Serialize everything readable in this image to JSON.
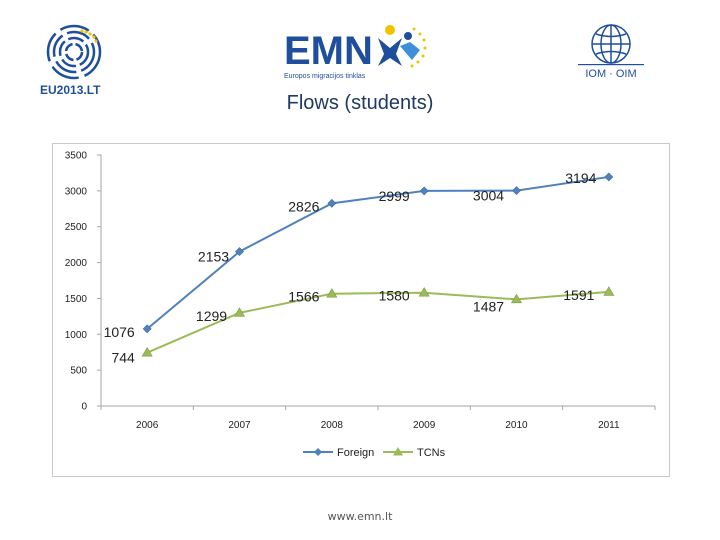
{
  "slide": {
    "title": "Flows (students)",
    "footer": "www.emn.lt"
  },
  "logos": {
    "eu_presidency_text": "EU2013.LT",
    "emn_text": "EMN",
    "emn_subtitle": "Europos migracijos tinklas",
    "iom_text": "IOM · OIM"
  },
  "colors": {
    "foreign": "#4f81bd",
    "tcns": "#9bbb59",
    "title": "#1f3864",
    "emn_blue": "#1f4e9c",
    "iom_blue": "#1f4e9c"
  },
  "chart_data": {
    "type": "line",
    "title": "",
    "xlabel": "",
    "ylabel": "",
    "categories": [
      "2006",
      "2007",
      "2008",
      "2009",
      "2010",
      "2011"
    ],
    "ylim": [
      0,
      3500
    ],
    "yticks": [
      "0",
      "500",
      "1000",
      "1500",
      "2000",
      "2500",
      "3000",
      "3500"
    ],
    "grid": false,
    "legend": "bottom",
    "series": [
      {
        "name": "Foreign",
        "values": [
          1076,
          2153,
          2826,
          2999,
          3004,
          3194
        ],
        "marker": "diamond",
        "color": "#4f81bd"
      },
      {
        "name": "TCNs",
        "values": [
          744,
          1299,
          1566,
          1580,
          1487,
          1591
        ],
        "marker": "triangle",
        "color": "#9bbb59"
      }
    ]
  }
}
